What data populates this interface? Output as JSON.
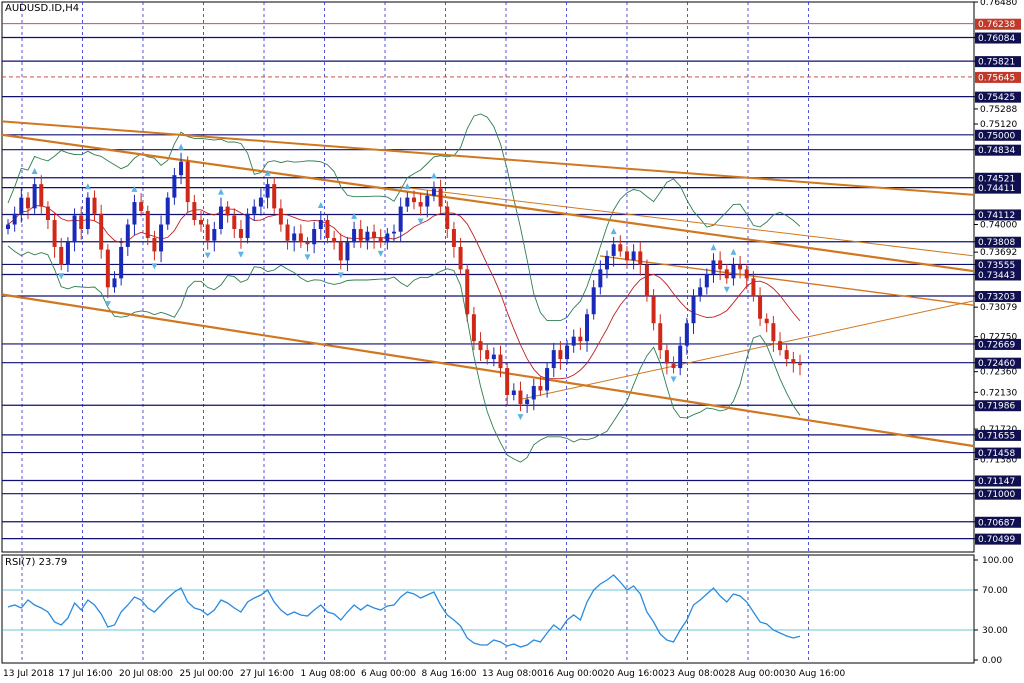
{
  "chart_data": [
    {
      "type": "candlestick",
      "title": "AUDUSD.ID,H4",
      "y_range": [
        0.7035,
        0.7648
      ],
      "price_ticks": [
        0.7648,
        0.76084,
        0.75821,
        0.75425,
        0.75288,
        0.7512,
        0.74834,
        0.74411,
        0.74112,
        0.74,
        0.73808,
        0.73692,
        0.73555,
        0.73443,
        0.73203,
        0.73079,
        0.7275,
        0.72669,
        0.7246,
        0.7236,
        0.7213,
        0.71986,
        0.7172,
        0.71655,
        0.71458,
        0.7138,
        0.71147,
        0.71,
        0.70687,
        0.70499
      ],
      "marked_prices": [
        {
          "value": 0.76238,
          "color": "#c0392b"
        },
        {
          "value": 0.76084,
          "color": "#101050"
        },
        {
          "value": 0.75821,
          "color": "#101050"
        },
        {
          "value": 0.75645,
          "color": "#c0392b"
        },
        {
          "value": 0.75425,
          "color": "#101050"
        },
        {
          "value": 0.75,
          "color": "#101050"
        },
        {
          "value": 0.74834,
          "color": "#101050"
        },
        {
          "value": 0.74521,
          "color": "#101050"
        },
        {
          "value": 0.74411,
          "color": "#101050"
        },
        {
          "value": 0.74112,
          "color": "#101050"
        },
        {
          "value": 0.73808,
          "color": "#101050"
        },
        {
          "value": 0.73555,
          "color": "#101050"
        },
        {
          "value": 0.73443,
          "color": "#101050"
        },
        {
          "value": 0.73203,
          "color": "#101050"
        },
        {
          "value": 0.72669,
          "color": "#101050"
        },
        {
          "value": 0.7246,
          "color": "#101050"
        },
        {
          "value": 0.71986,
          "color": "#101050"
        },
        {
          "value": 0.71655,
          "color": "#101050"
        },
        {
          "value": 0.71458,
          "color": "#101050"
        },
        {
          "value": 0.71147,
          "color": "#101050"
        },
        {
          "value": 0.71,
          "color": "#101050"
        },
        {
          "value": 0.70687,
          "color": "#101050"
        },
        {
          "value": 0.70499,
          "color": "#101050"
        }
      ],
      "x_labels": [
        "13 Jul 2018",
        "17 Jul 16:00",
        "20 Jul 08:00",
        "25 Jul 00:00",
        "27 Jul 16:00",
        "1 Aug 08:00",
        "6 Aug 00:00",
        "8 Aug 16:00",
        "13 Aug 08:00",
        "16 Aug 00:00",
        "20 Aug 16:00",
        "23 Aug 08:00",
        "28 Aug 00:00",
        "30 Aug 16:00"
      ],
      "close_path": [
        0.74,
        0.7412,
        0.743,
        0.7418,
        0.7445,
        0.742,
        0.7405,
        0.7375,
        0.7355,
        0.738,
        0.741,
        0.7395,
        0.743,
        0.7412,
        0.7372,
        0.733,
        0.734,
        0.7375,
        0.74,
        0.7425,
        0.7415,
        0.7385,
        0.737,
        0.74,
        0.743,
        0.7455,
        0.747,
        0.7425,
        0.7405,
        0.74,
        0.7382,
        0.7395,
        0.742,
        0.741,
        0.7395,
        0.7385,
        0.7412,
        0.742,
        0.743,
        0.7445,
        0.7418,
        0.74,
        0.7382,
        0.739,
        0.738,
        0.7378,
        0.7395,
        0.7405,
        0.7385,
        0.738,
        0.736,
        0.738,
        0.7395,
        0.7382,
        0.7392,
        0.7385,
        0.738,
        0.739,
        0.7392,
        0.742,
        0.743,
        0.7425,
        0.742,
        0.7432,
        0.744,
        0.742,
        0.7395,
        0.7375,
        0.735,
        0.73,
        0.727,
        0.726,
        0.725,
        0.7255,
        0.724,
        0.721,
        0.7215,
        0.72,
        0.7205,
        0.722,
        0.7215,
        0.724,
        0.726,
        0.725,
        0.7265,
        0.7275,
        0.727,
        0.73,
        0.733,
        0.735,
        0.7365,
        0.7378,
        0.737,
        0.736,
        0.737,
        0.7355,
        0.732,
        0.729,
        0.726,
        0.7245,
        0.724,
        0.7265,
        0.729,
        0.732,
        0.733,
        0.7345,
        0.736,
        0.735,
        0.734,
        0.7355,
        0.735,
        0.734,
        0.732,
        0.7295,
        0.729,
        0.727,
        0.726,
        0.725,
        0.7245,
        0.7244
      ]
    },
    {
      "type": "line",
      "title": "RSI(7) 23.79",
      "ylim": [
        0,
        100
      ],
      "y_ticks": [
        100.0,
        70.0,
        30.0,
        0.0
      ],
      "levels": [
        70,
        30
      ],
      "values": [
        53,
        55,
        52,
        60,
        55,
        52,
        48,
        38,
        35,
        42,
        57,
        50,
        60,
        55,
        46,
        33,
        35,
        48,
        55,
        63,
        60,
        52,
        48,
        55,
        62,
        68,
        72,
        58,
        52,
        50,
        45,
        50,
        60,
        57,
        52,
        48,
        58,
        62,
        65,
        70,
        58,
        50,
        45,
        48,
        45,
        44,
        50,
        55,
        48,
        46,
        40,
        48,
        55,
        50,
        55,
        52,
        50,
        54,
        55,
        63,
        68,
        66,
        62,
        65,
        68,
        55,
        45,
        40,
        34,
        22,
        17,
        15,
        15,
        20,
        18,
        14,
        16,
        13,
        15,
        20,
        18,
        27,
        35,
        30,
        40,
        45,
        40,
        58,
        70,
        76,
        80,
        85,
        78,
        70,
        74,
        66,
        48,
        38,
        26,
        20,
        18,
        30,
        40,
        55,
        60,
        66,
        72,
        64,
        58,
        66,
        64,
        58,
        48,
        38,
        36,
        30,
        27,
        24,
        22,
        23.79
      ]
    }
  ]
}
